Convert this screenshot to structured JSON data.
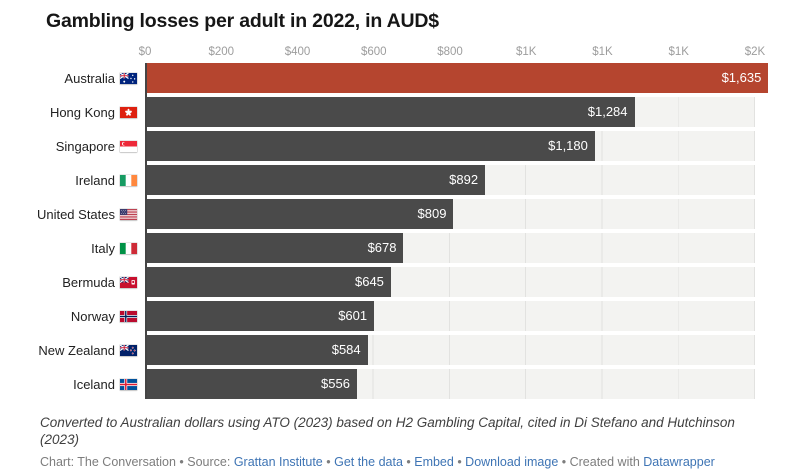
{
  "chart_data": {
    "type": "bar",
    "orientation": "horizontal",
    "title": "Gambling losses per adult in 2022, in AUD$",
    "categories": [
      "Australia",
      "Hong Kong",
      "Singapore",
      "Ireland",
      "United States",
      "Italy",
      "Bermuda",
      "Norway",
      "New Zealand",
      "Iceland"
    ],
    "values": [
      1635,
      1284,
      1180,
      892,
      809,
      678,
      645,
      601,
      584,
      556
    ],
    "value_labels": [
      "$1,635",
      "$1,284",
      "$1,180",
      "$892",
      "$809",
      "$678",
      "$645",
      "$601",
      "$584",
      "$556"
    ],
    "flags": [
      "australia",
      "hong-kong",
      "singapore",
      "ireland",
      "united-states",
      "italy",
      "bermuda",
      "norway",
      "new-zealand",
      "iceland"
    ],
    "xlim": [
      0,
      1600
    ],
    "x_ticks": [
      0,
      200,
      400,
      600,
      800,
      1000,
      1200,
      1400,
      1600
    ],
    "x_tick_labels": [
      "$0",
      "$200",
      "$400",
      "$600",
      "$800",
      "$1K",
      "$1K",
      "$1K",
      "$2K"
    ],
    "highlight_index": 0,
    "grid": "vertical",
    "legend": "none",
    "colors": {
      "highlight": "#b5452f",
      "bar": "#4a4a4a",
      "track": "#f3f3f1",
      "gridline": "#e2e2e0",
      "axis_line": "#454545",
      "link": "#3e74b4"
    }
  },
  "footer": {
    "notes": "Converted to Australian dollars using ATO (2023) based on H2 Gambling Capital, cited in Di Stefano and Hutchinson (2023)",
    "byline": [
      {
        "text": "Chart: The Conversation • Source: ",
        "link": false
      },
      {
        "text": "Grattan Institute",
        "link": true
      },
      {
        "text": " • ",
        "link": false
      },
      {
        "text": "Get the data",
        "link": true
      },
      {
        "text": " • ",
        "link": false
      },
      {
        "text": "Embed",
        "link": true
      },
      {
        "text": "  • ",
        "link": false
      },
      {
        "text": "Download image",
        "link": true
      },
      {
        "text": " • Created with ",
        "link": false
      },
      {
        "text": "Datawrapper",
        "link": true
      }
    ]
  }
}
